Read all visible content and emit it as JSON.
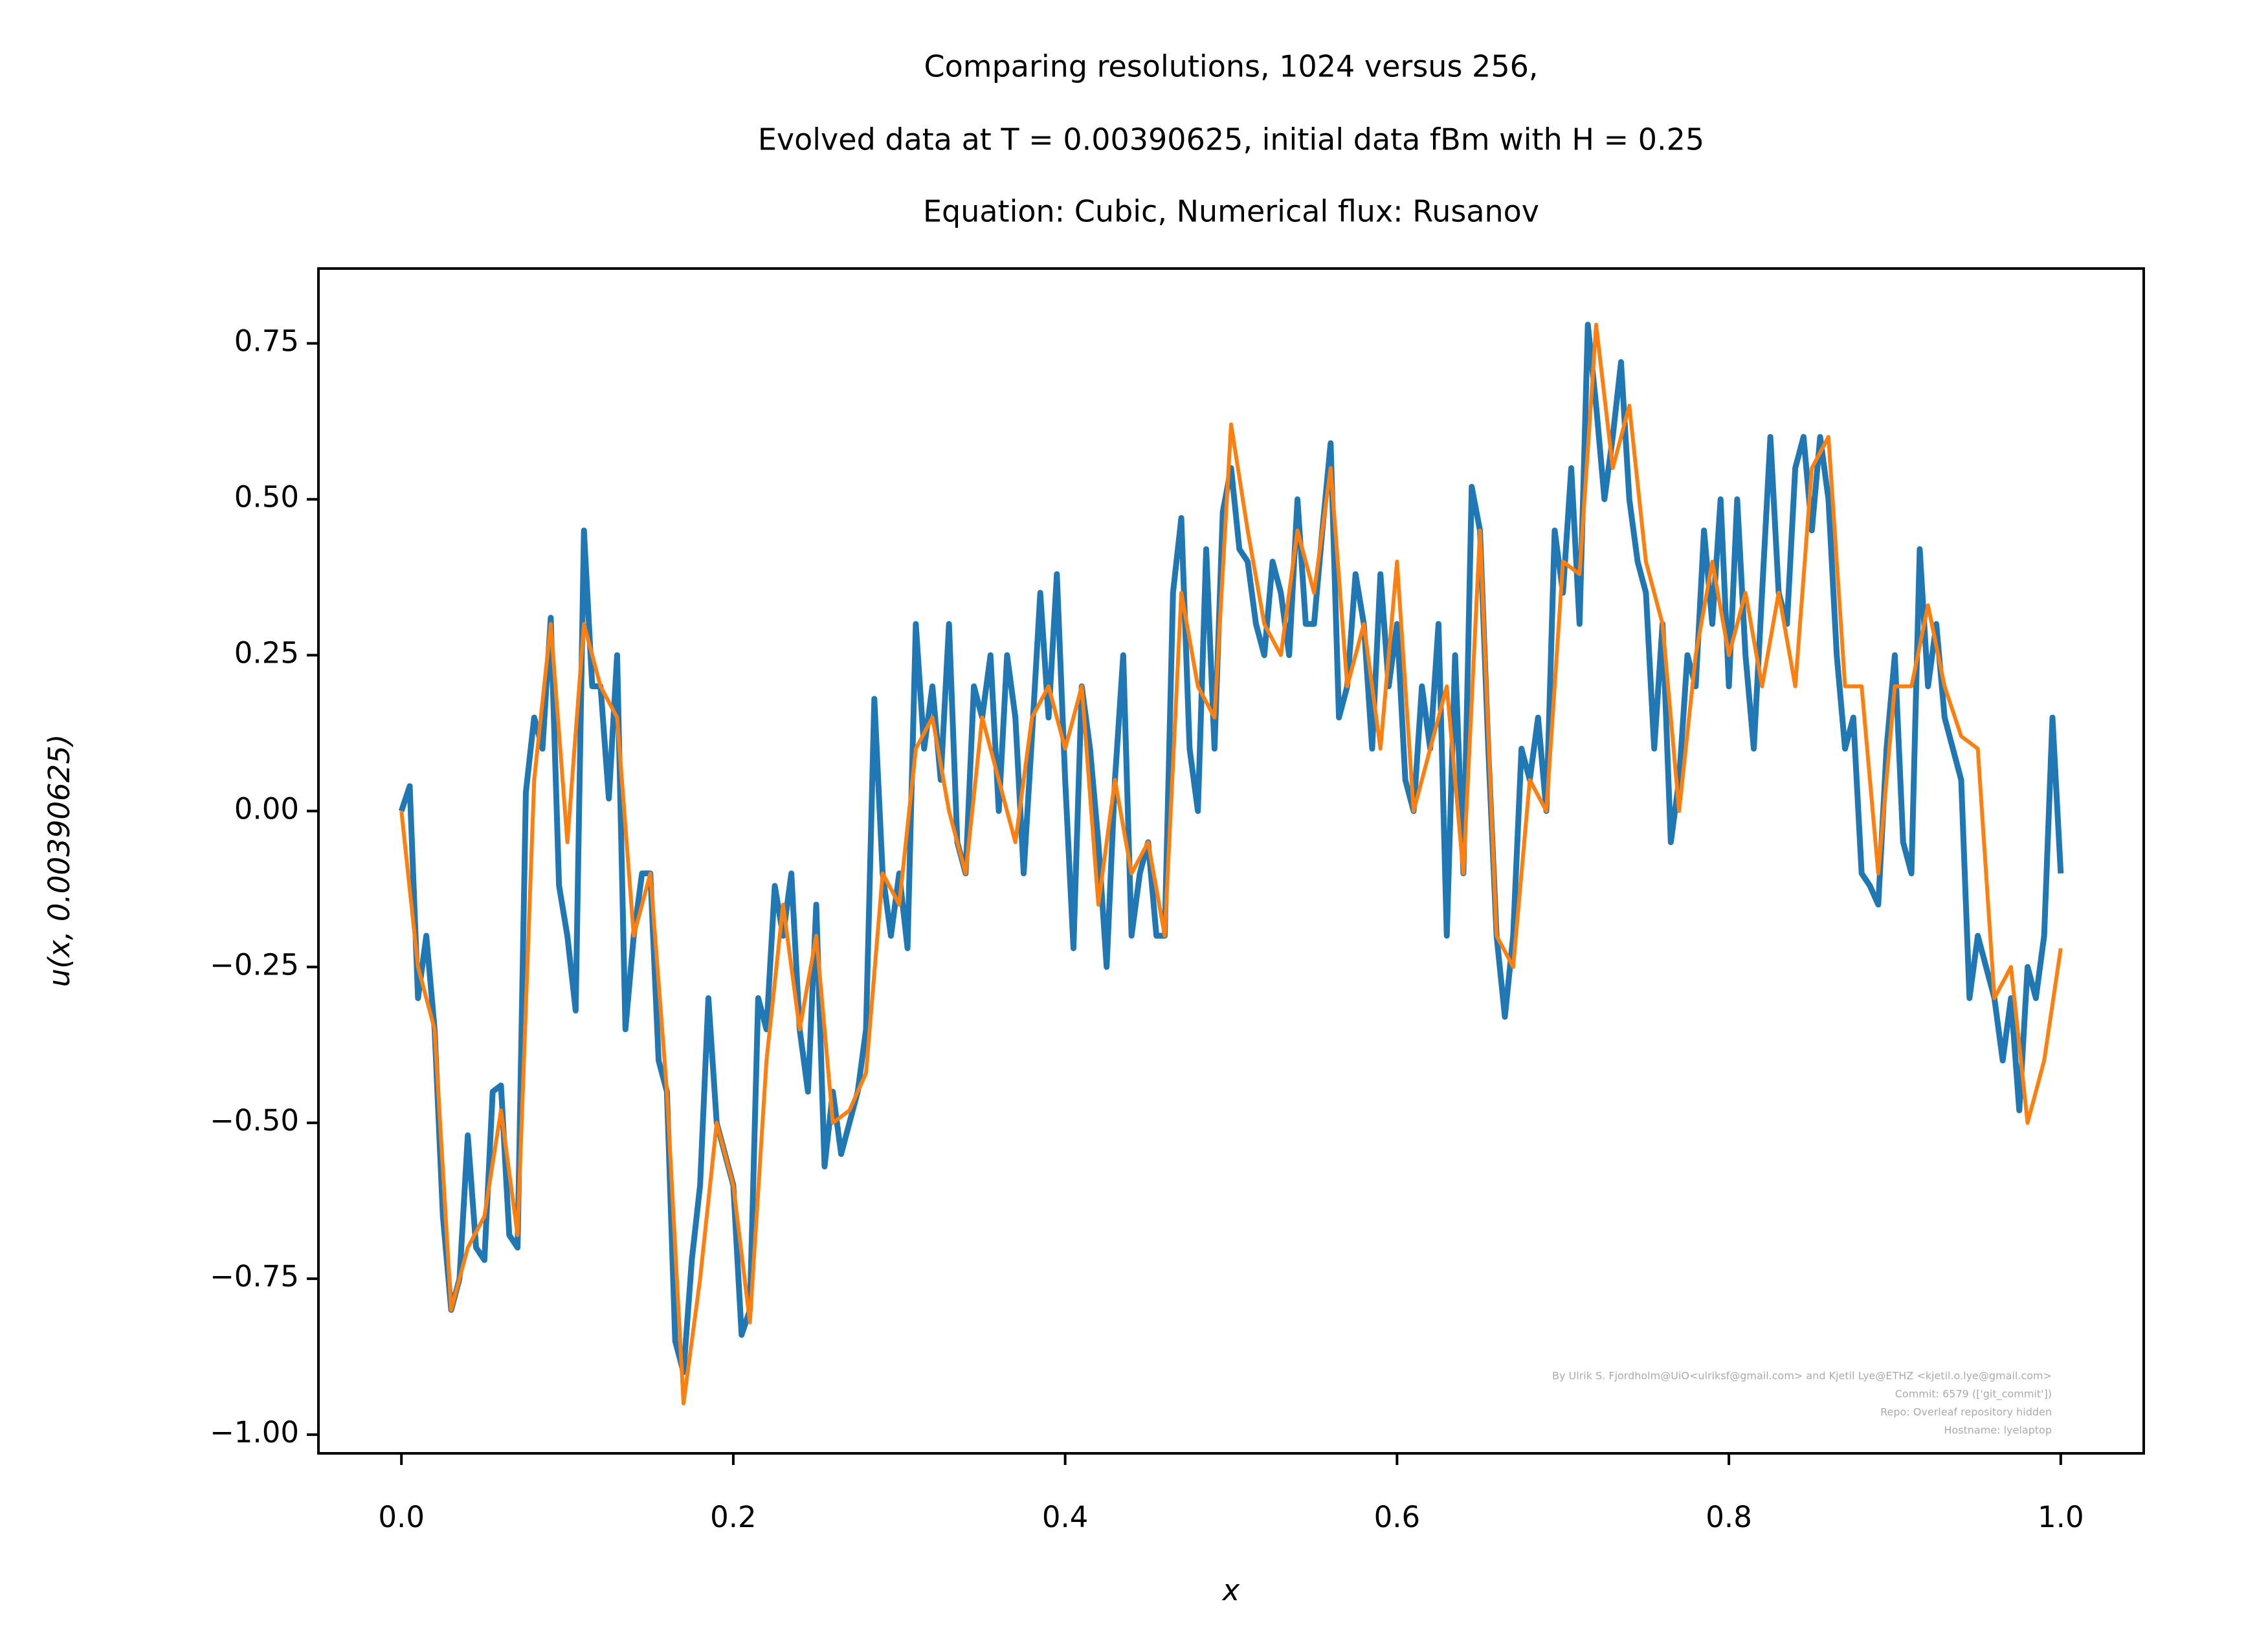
{
  "chart_data": {
    "type": "line",
    "title": [
      "Comparing resolutions, 1024 versus 256,",
      "Evolved data at T = 0.00390625, initial data fBm with H = 0.25",
      "Equation: Cubic, Numerical flux: Rusanov"
    ],
    "xlabel": "x",
    "ylabel": "u(x, 0.00390625)",
    "watermark": [
      "By Ulrik S. Fjordholm@UiO<ulriksf@gmail.com> and Kjetil Lye@ETHZ <kjetil.o.lye@gmail.com>",
      "Commit: 6579 (['git_commit'])",
      "Repo: Overleaf repository hidden",
      "Hostname: lyelaptop"
    ],
    "xlim": [
      -0.05,
      1.05
    ],
    "ylim": [
      -1.03,
      0.87
    ],
    "grid": false,
    "xticks": [
      {
        "value": 0,
        "label": "0.0"
      },
      {
        "value": 0.2,
        "label": "0.2"
      },
      {
        "value": 0.4,
        "label": "0.4"
      },
      {
        "value": 0.6,
        "label": "0.6"
      },
      {
        "value": 0.8,
        "label": "0.8"
      },
      {
        "value": 1,
        "label": "1.0"
      }
    ],
    "yticks": [
      {
        "value": -1,
        "label": "−1.00"
      },
      {
        "value": -0.75,
        "label": "−0.75"
      },
      {
        "value": -0.5,
        "label": "−0.50"
      },
      {
        "value": -0.25,
        "label": "−0.25"
      },
      {
        "value": 0,
        "label": "0.00"
      },
      {
        "value": 0.25,
        "label": "0.25"
      },
      {
        "value": 0.5,
        "label": "0.50"
      },
      {
        "value": 0.75,
        "label": "0.75"
      }
    ],
    "series": [
      {
        "color": "#1f77b4",
        "x": [
          0,
          0.005,
          0.01,
          0.015,
          0.02,
          0.025,
          0.03,
          0.035,
          0.04,
          0.045,
          0.05,
          0.055,
          0.06,
          0.065,
          0.07,
          0.075,
          0.08,
          0.085,
          0.09,
          0.095,
          0.1,
          0.105,
          0.11,
          0.115,
          0.12,
          0.125,
          0.13,
          0.135,
          0.14,
          0.145,
          0.15,
          0.155,
          0.16,
          0.165,
          0.17,
          0.175,
          0.18,
          0.185,
          0.19,
          0.195,
          0.2,
          0.205,
          0.21,
          0.215,
          0.22,
          0.225,
          0.23,
          0.235,
          0.24,
          0.245,
          0.25,
          0.255,
          0.26,
          0.265,
          0.27,
          0.275,
          0.28,
          0.285,
          0.29,
          0.295,
          0.3,
          0.305,
          0.31,
          0.315,
          0.32,
          0.325,
          0.33,
          0.335,
          0.34,
          0.345,
          0.35,
          0.355,
          0.36,
          0.365,
          0.37,
          0.375,
          0.38,
          0.385,
          0.39,
          0.395,
          0.4,
          0.405,
          0.41,
          0.415,
          0.42,
          0.425,
          0.43,
          0.435,
          0.44,
          0.445,
          0.45,
          0.455,
          0.46,
          0.465,
          0.47,
          0.475,
          0.48,
          0.485,
          0.49,
          0.495,
          0.5,
          0.505,
          0.51,
          0.515,
          0.52,
          0.525,
          0.53,
          0.535,
          0.54,
          0.545,
          0.55,
          0.555,
          0.56,
          0.565,
          0.57,
          0.575,
          0.58,
          0.585,
          0.59,
          0.595,
          0.6,
          0.605,
          0.61,
          0.615,
          0.62,
          0.625,
          0.63,
          0.635,
          0.64,
          0.645,
          0.65,
          0.655,
          0.66,
          0.665,
          0.67,
          0.675,
          0.68,
          0.685,
          0.69,
          0.695,
          0.7,
          0.705,
          0.71,
          0.715,
          0.72,
          0.725,
          0.73,
          0.735,
          0.74,
          0.745,
          0.75,
          0.755,
          0.76,
          0.765,
          0.77,
          0.775,
          0.78,
          0.785,
          0.79,
          0.795,
          0.8,
          0.805,
          0.81,
          0.815,
          0.82,
          0.825,
          0.83,
          0.835,
          0.84,
          0.845,
          0.85,
          0.855,
          0.86,
          0.865,
          0.87,
          0.875,
          0.88,
          0.885,
          0.89,
          0.895,
          0.9,
          0.905,
          0.91,
          0.915,
          0.92,
          0.925,
          0.93,
          0.935,
          0.94,
          0.945,
          0.95,
          0.955,
          0.96,
          0.965,
          0.97,
          0.975,
          0.98,
          0.985,
          0.99,
          0.995,
          1
        ],
        "values": [
          0,
          0.04,
          -0.3,
          -0.2,
          -0.35,
          -0.65,
          -0.8,
          -0.75,
          -0.52,
          -0.7,
          -0.72,
          -0.45,
          -0.44,
          -0.68,
          -0.7,
          0.03,
          0.15,
          0.1,
          0.31,
          -0.12,
          -0.2,
          -0.32,
          0.45,
          0.2,
          0.2,
          0.02,
          0.25,
          -0.35,
          -0.2,
          -0.1,
          -0.1,
          -0.4,
          -0.45,
          -0.85,
          -0.9,
          -0.72,
          -0.6,
          -0.3,
          -0.5,
          -0.55,
          -0.6,
          -0.84,
          -0.8,
          -0.3,
          -0.35,
          -0.12,
          -0.2,
          -0.1,
          -0.35,
          -0.45,
          -0.15,
          -0.57,
          -0.45,
          -0.55,
          -0.5,
          -0.45,
          -0.35,
          0.18,
          -0.1,
          -0.2,
          -0.1,
          -0.22,
          0.3,
          0.1,
          0.2,
          0.05,
          0.3,
          -0.05,
          -0.1,
          0.2,
          0.15,
          0.25,
          0,
          0.25,
          0.15,
          -0.1,
          0.12,
          0.35,
          0.15,
          0.38,
          0.05,
          -0.22,
          0.2,
          0.1,
          -0.05,
          -0.25,
          0.05,
          0.25,
          -0.2,
          -0.1,
          -0.05,
          -0.2,
          -0.2,
          0.35,
          0.47,
          0.1,
          0,
          0.42,
          0.1,
          0.48,
          0.55,
          0.42,
          0.4,
          0.3,
          0.25,
          0.4,
          0.35,
          0.25,
          0.5,
          0.3,
          0.3,
          0.45,
          0.59,
          0.15,
          0.2,
          0.38,
          0.3,
          0.1,
          0.38,
          0.2,
          0.3,
          0.05,
          0,
          0.2,
          0.1,
          0.3,
          -0.2,
          0.25,
          -0.1,
          0.52,
          0.45,
          0.1,
          -0.2,
          -0.33,
          -0.2,
          0.1,
          0.05,
          0.15,
          0,
          0.45,
          0.35,
          0.55,
          0.3,
          0.78,
          0.65,
          0.5,
          0.6,
          0.72,
          0.5,
          0.4,
          0.35,
          0.1,
          0.3,
          -0.05,
          0.05,
          0.25,
          0.2,
          0.45,
          0.3,
          0.5,
          0.2,
          0.5,
          0.25,
          0.1,
          0.35,
          0.6,
          0.35,
          0.3,
          0.55,
          0.6,
          0.45,
          0.6,
          0.5,
          0.25,
          0.1,
          0.15,
          -0.1,
          -0.12,
          -0.15,
          0.1,
          0.25,
          -0.05,
          -0.1,
          0.42,
          0.2,
          0.3,
          0.15,
          0.1,
          0.05,
          -0.3,
          -0.2,
          -0.25,
          -0.3,
          -0.4,
          -0.3,
          -0.48,
          -0.25,
          -0.3,
          -0.2,
          0.15,
          -0.1
        ]
      },
      {
        "color": "#ff7f0e",
        "x": [
          0,
          0.01,
          0.02,
          0.03,
          0.04,
          0.05,
          0.06,
          0.07,
          0.08,
          0.09,
          0.1,
          0.11,
          0.12,
          0.13,
          0.14,
          0.15,
          0.16,
          0.17,
          0.18,
          0.19,
          0.2,
          0.21,
          0.22,
          0.23,
          0.24,
          0.25,
          0.26,
          0.27,
          0.28,
          0.29,
          0.3,
          0.31,
          0.32,
          0.33,
          0.34,
          0.35,
          0.36,
          0.37,
          0.38,
          0.39,
          0.4,
          0.41,
          0.42,
          0.43,
          0.44,
          0.45,
          0.46,
          0.47,
          0.48,
          0.49,
          0.5,
          0.51,
          0.52,
          0.53,
          0.54,
          0.55,
          0.56,
          0.57,
          0.58,
          0.59,
          0.6,
          0.61,
          0.62,
          0.63,
          0.64,
          0.65,
          0.66,
          0.67,
          0.68,
          0.69,
          0.7,
          0.71,
          0.72,
          0.73,
          0.74,
          0.75,
          0.76,
          0.77,
          0.78,
          0.79,
          0.8,
          0.81,
          0.82,
          0.83,
          0.84,
          0.85,
          0.86,
          0.87,
          0.88,
          0.89,
          0.9,
          0.91,
          0.92,
          0.93,
          0.94,
          0.95,
          0.96,
          0.97,
          0.98,
          0.99,
          1
        ],
        "values": [
          0,
          -0.25,
          -0.35,
          -0.8,
          -0.7,
          -0.65,
          -0.48,
          -0.68,
          0.05,
          0.3,
          -0.05,
          0.3,
          0.2,
          0.15,
          -0.2,
          -0.1,
          -0.45,
          -0.95,
          -0.75,
          -0.5,
          -0.6,
          -0.82,
          -0.4,
          -0.15,
          -0.35,
          -0.2,
          -0.5,
          -0.48,
          -0.42,
          -0.1,
          -0.15,
          0.1,
          0.15,
          0,
          -0.1,
          0.15,
          0.05,
          -0.05,
          0.15,
          0.2,
          0.1,
          0.2,
          -0.15,
          0.05,
          -0.1,
          -0.05,
          -0.2,
          0.35,
          0.2,
          0.15,
          0.62,
          0.45,
          0.3,
          0.25,
          0.45,
          0.35,
          0.55,
          0.2,
          0.3,
          0.1,
          0.4,
          0,
          0.1,
          0.2,
          -0.1,
          0.45,
          -0.2,
          -0.25,
          0.05,
          0,
          0.4,
          0.38,
          0.78,
          0.55,
          0.65,
          0.4,
          0.3,
          0,
          0.25,
          0.4,
          0.25,
          0.35,
          0.2,
          0.35,
          0.2,
          0.55,
          0.6,
          0.2,
          0.2,
          -0.1,
          0.2,
          0.2,
          0.33,
          0.2,
          0.12,
          0.1,
          -0.3,
          -0.25,
          -0.5,
          -0.4,
          -0.22
        ]
      }
    ]
  }
}
